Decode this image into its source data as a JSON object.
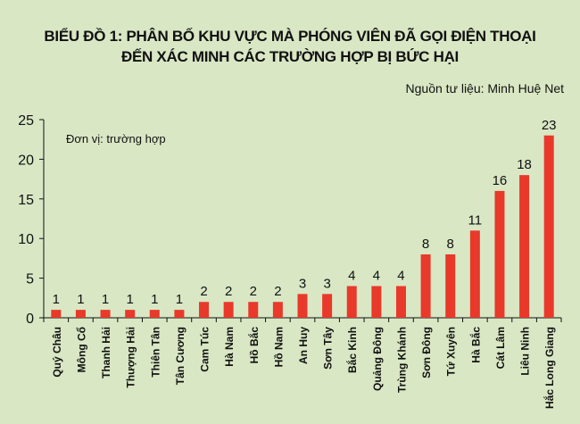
{
  "chart_data": {
    "type": "bar",
    "title": "BIỂU ĐỒ 1: PHÂN BỐ KHU VỰC MÀ PHÓNG VIÊN ĐÃ GỌI  ĐIỆN  THOẠI",
    "subtitle": "ĐẾN XÁC MINH CÁC TRƯỜNG HỢP BỊ BỨC HẠI",
    "source": "Nguồn tư liệu: Minh Huệ Net",
    "unit_label": "Đơn vị: trường hợp",
    "xlabel": "",
    "ylabel": "",
    "ylim": [
      0,
      25
    ],
    "yticks": [
      0,
      5,
      10,
      15,
      20,
      25
    ],
    "grid": false,
    "bar_color": "#e8392a",
    "categories": [
      "Quý Châu",
      "Mông Cổ",
      "Thanh Hải",
      "Thượng Hải",
      "Thiên Tân",
      "Tân Cương",
      "Cam Túc",
      "Hà Nam",
      "Hồ Bắc",
      "Hồ Nam",
      "An Huy",
      "Sơn Tây",
      "Bắc Kinh",
      "Quảng Đông",
      "Trùng Khánh",
      "Sơn Đông",
      "Tứ Xuyên",
      "Hà Bắc",
      "Cát Lâm",
      "Liêu Ninh",
      "Hắc Long Giang"
    ],
    "values": [
      1,
      1,
      1,
      1,
      1,
      1,
      2,
      2,
      2,
      2,
      3,
      3,
      4,
      4,
      4,
      8,
      8,
      11,
      16,
      18,
      23
    ]
  }
}
